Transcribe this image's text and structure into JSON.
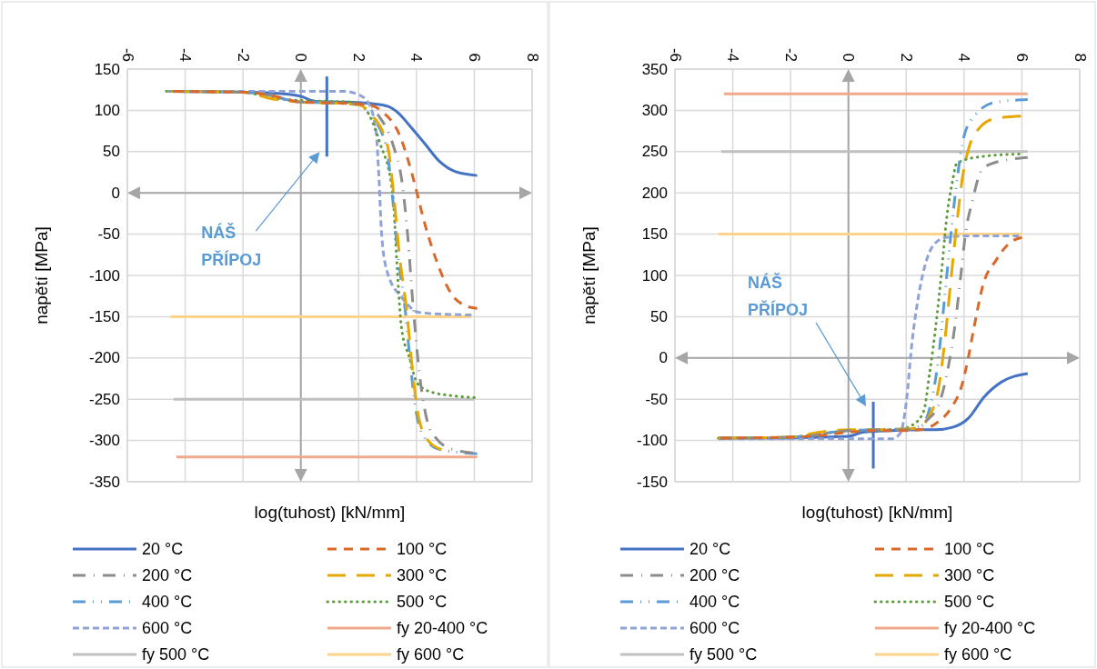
{
  "chart_data": [
    {
      "type": "line",
      "xlabel": "log(tuhost) [kN/mm]",
      "ylabel": "napětí [MPa]",
      "xlim": [
        -6,
        8
      ],
      "xticks": [
        -6,
        -4,
        -2,
        0,
        2,
        4,
        6,
        8
      ],
      "ylim": [
        -350,
        150
      ],
      "yticks": [
        -350,
        -300,
        -250,
        -200,
        -150,
        -100,
        -50,
        0,
        50,
        100,
        150
      ],
      "grid": true,
      "legend": "bottom",
      "annotations": [
        "NÁŠ PŘÍPOJ"
      ],
      "series": [
        {
          "name": "20 °C",
          "color": "#4472c4",
          "line_style": "solid",
          "x": [
            -4.5,
            -2,
            -1,
            0,
            0.5,
            1.5,
            2.5,
            3,
            3.4,
            3.75,
            4.28,
            4.8,
            5.33,
            6.1
          ],
          "values": [
            123,
            122,
            121,
            117,
            111,
            110,
            108,
            105,
            96,
            82,
            60,
            38,
            26,
            21
          ]
        },
        {
          "name": "100 °C",
          "color": "#d9692a",
          "line_style": "dashed",
          "x": [
            -4.4,
            -2,
            -1,
            0,
            1,
            2.3,
            2.8,
            3.44,
            3.87,
            4.3,
            4.7,
            5.22,
            5.65,
            6.1
          ],
          "values": [
            123,
            122,
            118,
            110,
            109,
            107,
            99,
            68,
            20,
            -39,
            -83,
            -123,
            -136,
            -140
          ]
        },
        {
          "name": "200 °C",
          "color": "#8c8c8c",
          "line_style": "dashdot",
          "x": [
            -4.45,
            -2,
            -1,
            0,
            1,
            2.3,
            2.7,
            3.2,
            3.5,
            3.7,
            3.86,
            4.1,
            4.4,
            4.7,
            5.1,
            5.95
          ],
          "values": [
            123,
            122,
            118,
            110,
            109,
            107,
            93,
            57,
            13,
            -53,
            -127,
            -218,
            -280,
            -298,
            -309,
            -315
          ]
        },
        {
          "name": "300 °C",
          "color": "#e6a800",
          "line_style": "longdash",
          "x": [
            -4.5,
            -2,
            -1,
            0,
            1,
            2,
            2.38,
            3,
            3.2,
            3.4,
            3.67,
            3.87,
            4.08,
            4.45,
            4.87
          ],
          "values": [
            123,
            122,
            114,
            110,
            109,
            107,
            97,
            57,
            2,
            -72,
            -145,
            -218,
            -273,
            -302,
            -311
          ]
        },
        {
          "name": "400 °C",
          "color": "#5b9bd5",
          "line_style": "dashdotdot",
          "x": [
            -4.55,
            -2,
            -1,
            0,
            1,
            2,
            2.33,
            2.95,
            3.15,
            3.35,
            3.62,
            3.82,
            4.03,
            4.4,
            4.82,
            6.1
          ],
          "values": [
            123,
            122,
            117,
            110,
            109,
            107,
            97,
            57,
            2,
            -72,
            -145,
            -218,
            -273,
            -302,
            -311,
            -316
          ]
        },
        {
          "name": "500 °C",
          "color": "#5e9c3b",
          "line_style": "dotted",
          "x": [
            -4.65,
            -2,
            -1,
            0,
            1,
            1.8,
            2.2,
            2.74,
            3.17,
            3.33,
            3.48,
            3.76,
            4,
            4.4,
            5.3,
            6
          ],
          "values": [
            123,
            122,
            115,
            112,
            111,
            110,
            103,
            60,
            2,
            -90,
            -163,
            -200,
            -229,
            -240,
            -246,
            -248
          ]
        },
        {
          "name": "600 °C",
          "color": "#8fa3d6",
          "line_style": "shortdash",
          "x": [
            -4.6,
            -2,
            0,
            1.5,
            2,
            2.35,
            2.6,
            2.7,
            2.8,
            3,
            3.5,
            4.1,
            5.9
          ],
          "values": [
            123,
            123,
            123,
            123,
            119,
            108,
            75,
            20,
            -53,
            -97,
            -127,
            -145,
            -148
          ]
        },
        {
          "name": "fy 20-400 °C",
          "color": "#f0a88a",
          "line_style": "solid",
          "x": [
            -4.3,
            6.1
          ],
          "values": [
            -320,
            -320
          ]
        },
        {
          "name": "fy 500 °C",
          "color": "#bfbfbf",
          "line_style": "solid",
          "x": [
            -4.4,
            6
          ],
          "values": [
            -250,
            -250
          ]
        },
        {
          "name": "fy 600 °C",
          "color": "#ffd38a",
          "line_style": "solid",
          "x": [
            -4.5,
            5.9
          ],
          "values": [
            -150,
            -150
          ]
        },
        {
          "color": "#4472c4",
          "line_style": "solid",
          "x": [
            0.9,
            0.9
          ],
          "values": [
            44,
            141
          ]
        }
      ]
    },
    {
      "type": "line",
      "xlabel": "log(tuhost) [kN/mm]",
      "ylabel": "napětí [MPa]",
      "xlim": [
        -6,
        8
      ],
      "xticks": [
        -6,
        -4,
        -2,
        0,
        2,
        4,
        6,
        8
      ],
      "ylim": [
        -150,
        350
      ],
      "yticks": [
        -150,
        -100,
        -50,
        0,
        50,
        100,
        150,
        200,
        250,
        300,
        350
      ],
      "grid": true,
      "legend": "bottom",
      "annotations": [
        "NÁŠ PŘÍPOJ"
      ],
      "series": [
        {
          "name": "20 °C",
          "color": "#4472c4",
          "line_style": "solid",
          "x": [
            -4.5,
            -2,
            -1,
            0,
            0.5,
            1.5,
            2.5,
            3,
            3.6,
            4.15,
            4.7,
            5.3,
            6.2
          ],
          "values": [
            -97,
            -97,
            -96,
            -95,
            -90,
            -88,
            -87,
            -87,
            -84,
            -73,
            -47,
            -29,
            -19
          ]
        },
        {
          "name": "100 °C",
          "color": "#d9692a",
          "line_style": "dashed",
          "x": [
            -4.4,
            -2,
            -1,
            0,
            1,
            2,
            2.5,
            3,
            3.6,
            3.9,
            4.15,
            4.35,
            4.66,
            5.1,
            5.6,
            6
          ],
          "values": [
            -97,
            -96,
            -94,
            -90,
            -88,
            -88,
            -87,
            -80,
            -58,
            -36,
            1,
            38,
            89,
            118,
            140,
            146
          ]
        },
        {
          "name": "200 °C",
          "color": "#8c8c8c",
          "line_style": "dashdot",
          "x": [
            -4.45,
            -2,
            -1,
            0,
            1,
            2,
            2.3,
            2.7,
            3.15,
            3.46,
            3.68,
            3.9,
            4.04,
            4.3,
            4.6,
            5,
            6.2
          ],
          "values": [
            -97,
            -96,
            -93,
            -88,
            -87,
            -87,
            -85,
            -76,
            -54,
            -10,
            38,
            104,
            148,
            192,
            227,
            236,
            243
          ]
        },
        {
          "name": "300 °C",
          "color": "#e6a800",
          "line_style": "longdash",
          "x": [
            -4.5,
            -2,
            -1,
            0,
            1,
            2,
            2.4,
            2.75,
            3.12,
            3.33,
            3.54,
            3.75,
            3.96,
            4.17,
            4.54,
            5.07,
            5.97
          ],
          "values": [
            -97,
            -96,
            -90,
            -87,
            -87,
            -86,
            -85,
            -73,
            -36,
            19,
            93,
            163,
            222,
            255,
            279,
            290,
            293
          ]
        },
        {
          "name": "400 °C",
          "color": "#5b9bd5",
          "line_style": "dashdotdot",
          "x": [
            -4.5,
            -2,
            -1,
            0,
            1,
            2,
            2.5,
            2.86,
            3.12,
            3.33,
            3.54,
            3.75,
            4,
            4.4,
            5.1,
            6.2
          ],
          "values": [
            -97,
            -96,
            -92,
            -88,
            -87,
            -86,
            -83,
            -54,
            1,
            74,
            148,
            214,
            269,
            295,
            310,
            313
          ]
        },
        {
          "name": "500 °C",
          "color": "#5e9c3b",
          "line_style": "dotted",
          "x": [
            -4.5,
            -2,
            -1,
            0,
            1,
            1.8,
            2.18,
            2.6,
            2.81,
            3.02,
            3.24,
            3.39,
            3.6,
            3.75,
            4.6,
            5.9
          ],
          "values": [
            -97,
            -96,
            -92,
            -88,
            -87,
            -86,
            -82,
            -65,
            -18,
            38,
            111,
            167,
            214,
            236,
            244,
            247
          ]
        },
        {
          "name": "600 °C",
          "color": "#8fa3d6",
          "line_style": "shortdash",
          "x": [
            -4.5,
            -2,
            0,
            1.5,
            1.8,
            2,
            2.2,
            2.42,
            2.64,
            2.95,
            3.37,
            4.2,
            5.9
          ],
          "values": [
            -98,
            -98,
            -98,
            -98,
            -91,
            -54,
            19,
            74,
            111,
            137,
            146,
            148,
            148
          ]
        },
        {
          "name": "fy 20-400 °C",
          "color": "#f0a88a",
          "line_style": "solid",
          "x": [
            -4.3,
            6.2
          ],
          "values": [
            320,
            320
          ]
        },
        {
          "name": "fy 500 °C",
          "color": "#bfbfbf",
          "line_style": "solid",
          "x": [
            -4.4,
            6.2
          ],
          "values": [
            250,
            250
          ]
        },
        {
          "name": "fy 600 °C",
          "color": "#ffd38a",
          "line_style": "solid",
          "x": [
            -4.5,
            6
          ],
          "values": [
            150,
            150
          ]
        },
        {
          "color": "#4472c4",
          "line_style": "solid",
          "x": [
            0.86,
            0.86
          ],
          "values": [
            -53,
            -134
          ]
        }
      ]
    }
  ]
}
